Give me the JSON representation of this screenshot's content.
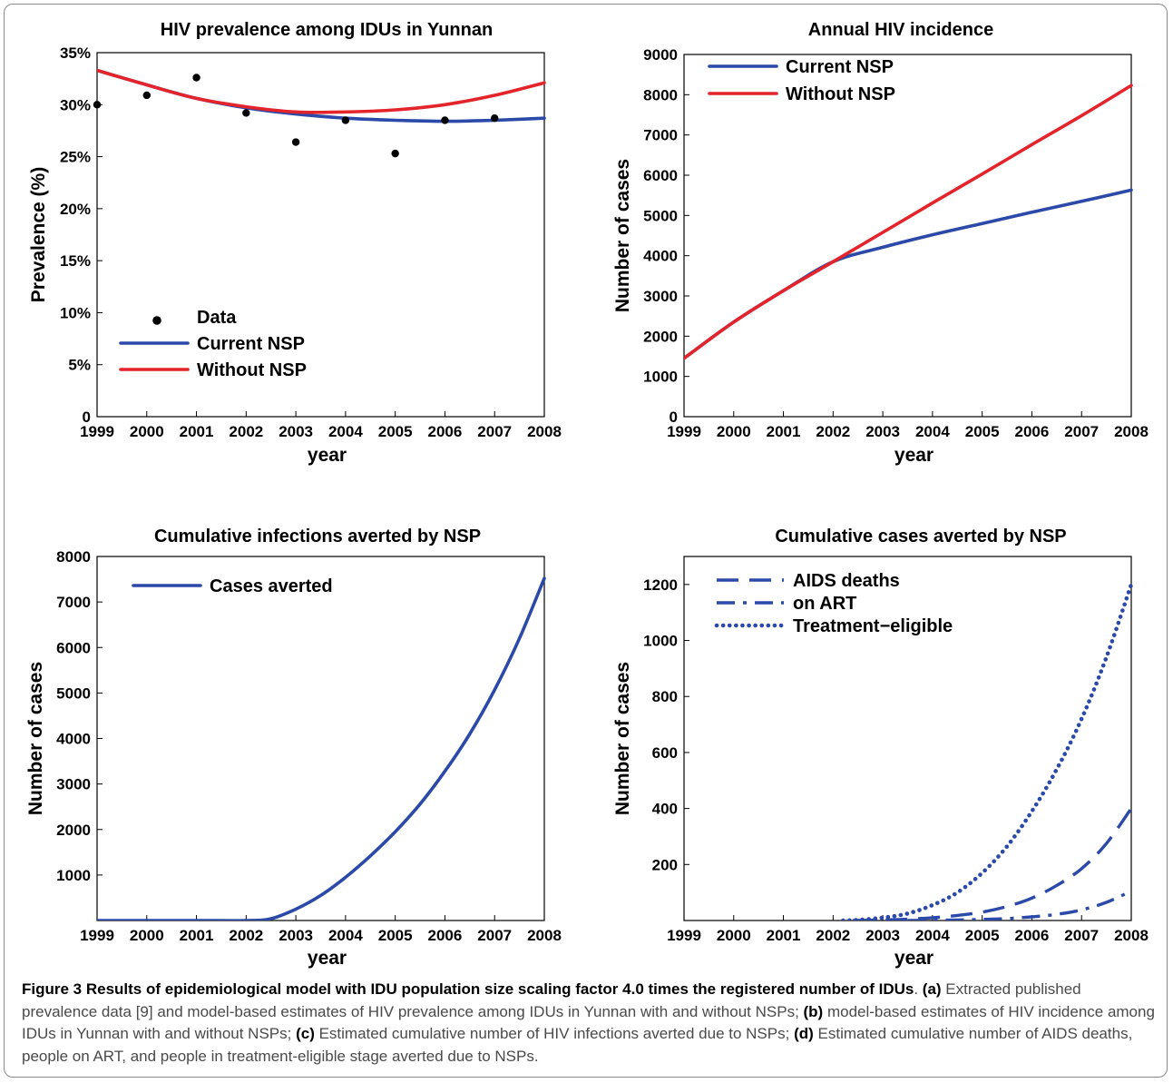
{
  "chart_data": [
    {
      "type": "scatter",
      "title": "HIV prevalence among IDUs in Yunnan",
      "xlabel": "year",
      "ylabel": "Prevalence (%)",
      "xlim": [
        1999,
        2008
      ],
      "ylim": [
        0,
        35
      ],
      "xticks": [
        "1999",
        "2000",
        "2001",
        "2002",
        "2003",
        "2004",
        "2005",
        "2006",
        "2007",
        "2008"
      ],
      "yticks": [
        "0",
        "5%",
        "10%",
        "15%",
        "20%",
        "25%",
        "30%",
        "35%"
      ],
      "legend_position": "bottom-left",
      "legend": [
        "Data",
        "Current NSP",
        "Without NSP"
      ],
      "data_points": {
        "name": "Data",
        "x": [
          1999,
          2000,
          2001,
          2002,
          2003,
          2004,
          2005,
          2006,
          2007
        ],
        "y": [
          30.0,
          30.9,
          32.6,
          29.2,
          26.4,
          28.5,
          25.3,
          28.5,
          28.7
        ]
      },
      "series": [
        {
          "name": "Current NSP",
          "color": "#2b49a8",
          "style": "solid",
          "x": [
            1999,
            2000,
            2001,
            2002,
            2003,
            2004,
            2005,
            2006,
            2007,
            2008
          ],
          "y": [
            33.3,
            31.9,
            30.6,
            29.7,
            29.1,
            28.7,
            28.5,
            28.4,
            28.5,
            28.7
          ]
        },
        {
          "name": "Without NSP",
          "color": "#e3242b",
          "style": "solid",
          "x": [
            1999,
            2000,
            2001,
            2002,
            2003,
            2004,
            2005,
            2006,
            2007,
            2008
          ],
          "y": [
            33.3,
            31.9,
            30.6,
            29.8,
            29.3,
            29.3,
            29.5,
            30.0,
            30.9,
            32.1
          ]
        }
      ]
    },
    {
      "type": "line",
      "title": "Annual HIV incidence",
      "xlabel": "year",
      "ylabel": "Number of cases",
      "xlim": [
        1999,
        2008
      ],
      "ylim": [
        0,
        9000
      ],
      "xticks": [
        "1999",
        "2000",
        "2001",
        "2002",
        "2003",
        "2004",
        "2005",
        "2006",
        "2007",
        "2008"
      ],
      "yticks": [
        "0",
        "1000",
        "2000",
        "3000",
        "4000",
        "5000",
        "6000",
        "7000",
        "8000",
        "9000"
      ],
      "legend_position": "top-left",
      "legend": [
        "Current NSP",
        "Without NSP"
      ],
      "series": [
        {
          "name": "Current NSP",
          "color": "#2b49a8",
          "style": "solid",
          "x": [
            1999,
            2000,
            2001,
            2002,
            2003,
            2004,
            2005,
            2006,
            2007,
            2008
          ],
          "y": [
            1450,
            2350,
            3130,
            3850,
            4210,
            4520,
            4800,
            5080,
            5350,
            5630
          ]
        },
        {
          "name": "Without NSP",
          "color": "#e3242b",
          "style": "solid",
          "x": [
            1999,
            2000,
            2001,
            2002,
            2003,
            2004,
            2005,
            2006,
            2007,
            2008
          ],
          "y": [
            1450,
            2350,
            3130,
            3850,
            4580,
            5310,
            6030,
            6760,
            7480,
            8230
          ]
        }
      ]
    },
    {
      "type": "line",
      "title": "Cumulative infections averted by NSP",
      "xlabel": "year",
      "ylabel": "Number of cases",
      "xlim": [
        1999,
        2008
      ],
      "ylim": [
        0,
        8000
      ],
      "xticks": [
        "1999",
        "2000",
        "2001",
        "2002",
        "2003",
        "2004",
        "2005",
        "2006",
        "2007",
        "2008"
      ],
      "yticks": [
        "1000",
        "2000",
        "3000",
        "4000",
        "5000",
        "6000",
        "7000",
        "8000"
      ],
      "legend_position": "top-left",
      "legend": [
        "Cases averted"
      ],
      "series": [
        {
          "name": "Cases averted",
          "color": "#2b49a8",
          "style": "solid",
          "x": [
            1999,
            2000,
            2001,
            2002,
            2002.5,
            2003,
            2003.5,
            2004,
            2004.5,
            2005,
            2005.5,
            2006,
            2006.5,
            2007,
            2007.5,
            2008
          ],
          "y": [
            0,
            0,
            0,
            0,
            40,
            250,
            550,
            950,
            1420,
            1950,
            2560,
            3280,
            4100,
            5070,
            6200,
            7520
          ]
        }
      ]
    },
    {
      "type": "line",
      "title": "Cumulative cases averted by NSP",
      "xlabel": "year",
      "ylabel": "Number of cases",
      "xlim": [
        1999,
        2008
      ],
      "ylim": [
        0,
        1300
      ],
      "xticks": [
        "1999",
        "2000",
        "2001",
        "2002",
        "2003",
        "2004",
        "2005",
        "2006",
        "2007",
        "2008"
      ],
      "yticks": [
        "200",
        "400",
        "600",
        "800",
        "1000",
        "1200"
      ],
      "legend_position": "top-left",
      "legend": [
        "AIDS deaths",
        "on ART",
        "Treatment−eligible"
      ],
      "series": [
        {
          "name": "AIDS deaths",
          "color": "#2b49a8",
          "style": "dashed",
          "x": [
            2002.4,
            2003,
            2003.5,
            2004,
            2004.5,
            2005,
            2005.5,
            2006,
            2006.5,
            2007,
            2007.5,
            2008
          ],
          "y": [
            0,
            2,
            5,
            10,
            18,
            30,
            50,
            80,
            125,
            185,
            275,
            400
          ]
        },
        {
          "name": "on ART",
          "color": "#2b49a8",
          "style": "dashdot",
          "x": [
            2003.5,
            2004,
            2004.5,
            2005,
            2005.5,
            2006,
            2006.5,
            2007,
            2007.5,
            2008
          ],
          "y": [
            0,
            1,
            2,
            4,
            7,
            13,
            22,
            38,
            65,
            105
          ]
        },
        {
          "name": "Treatment−eligible",
          "color": "#2b49a8",
          "style": "dotted",
          "x": [
            2002.2,
            2002.5,
            2003,
            2003.5,
            2004,
            2004.5,
            2005,
            2005.5,
            2006,
            2006.5,
            2007,
            2007.5,
            2008
          ],
          "y": [
            0,
            2,
            10,
            25,
            55,
            100,
            170,
            265,
            390,
            540,
            720,
            940,
            1200
          ]
        }
      ]
    }
  ],
  "caption": {
    "title": "Figure 3 Results of epidemiological model with IDU population size scaling factor 4.0 times the registered number of IDUs",
    "parts": [
      {
        "label": "(a)",
        "text": " Extracted published prevalence data [9] and model-based estimates of HIV prevalence among IDUs in Yunnan with and without NSPs; "
      },
      {
        "label": "(b)",
        "text": " model-based estimates of HIV incidence among IDUs in Yunnan with and without NSPs; "
      },
      {
        "label": "(c)",
        "text": " Estimated cumulative number of HIV infections averted due to NSPs; "
      },
      {
        "label": "(d)",
        "text": " Estimated cumulative number of AIDS deaths, people on ART, and people in treatment-eligible stage averted due to NSPs."
      }
    ]
  }
}
